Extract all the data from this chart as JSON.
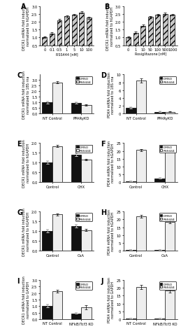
{
  "panel_A": {
    "title": "A",
    "xlabel": "RSS444 [nM]",
    "ylabel": "DECR1 mRNA fold induction\nnormalized to hGAPDH",
    "categories": [
      "0",
      "0.1",
      "0.5",
      "1",
      "5",
      "10",
      "100"
    ],
    "values": [
      1.0,
      1.25,
      2.1,
      2.35,
      2.45,
      2.6,
      2.25
    ],
    "errors": [
      0.05,
      0.07,
      0.08,
      0.07,
      0.06,
      0.08,
      0.06
    ],
    "ylim": [
      0.5,
      3.0
    ],
    "yticks": [
      0.5,
      1.0,
      1.5,
      2.0,
      2.5,
      3.0
    ],
    "color": "#c8c8c8",
    "hatch": "////"
  },
  "panel_B": {
    "title": "B",
    "xlabel": "Rosiglitazone [nM]",
    "ylabel": "DECR1 mRNA fold induction\nnormalized to hGAPDH",
    "categories": [
      "0",
      "1",
      "10",
      "50",
      "100",
      "500",
      "1000"
    ],
    "values": [
      1.0,
      1.3,
      1.75,
      2.3,
      2.45,
      2.5,
      2.45
    ],
    "errors": [
      0.05,
      0.06,
      0.07,
      0.07,
      0.06,
      0.07,
      0.06
    ],
    "ylim": [
      0.5,
      3.0
    ],
    "yticks": [
      0.5,
      1.0,
      1.5,
      2.0,
      2.5,
      3.0
    ],
    "color": "#c8c8c8",
    "hatch": "////"
  },
  "panel_C": {
    "title": "C",
    "ylabel": "DECR1 mRNA fold induction\nnormalized to 18S rna",
    "groups": [
      "NT Control",
      "PPARyKD"
    ],
    "dmso_values": [
      1.0,
      0.95
    ],
    "rss_values": [
      2.8,
      0.75
    ],
    "dmso_errors": [
      0.08,
      0.06
    ],
    "rss_errors": [
      0.1,
      0.06
    ],
    "ylim": [
      0,
      3.5
    ],
    "yticks": [
      0.0,
      0.5,
      1.0,
      1.5,
      2.0,
      2.5,
      3.0
    ]
  },
  "panel_D": {
    "title": "D",
    "ylabel": "PDK4 mRNA fold induction\nnormalized to 18S rna",
    "groups": [
      "NT Control",
      "PPARyKD"
    ],
    "dmso_values": [
      1.5,
      0.5
    ],
    "rss_values": [
      8.5,
      0.5
    ],
    "dmso_errors": [
      0.15,
      0.06
    ],
    "rss_errors": [
      0.5,
      0.05
    ],
    "ylim": [
      0,
      10
    ],
    "yticks": [
      0,
      2,
      4,
      6,
      8,
      10
    ]
  },
  "panel_E": {
    "title": "E",
    "ylabel": "DECR1 mRNA fold induction\nnormalized to hGAPDH",
    "groups": [
      "Control",
      "CHX"
    ],
    "dmso_values": [
      1.0,
      1.4
    ],
    "rss_values": [
      1.85,
      1.15
    ],
    "dmso_errors": [
      0.07,
      0.06
    ],
    "rss_errors": [
      0.05,
      0.05
    ],
    "ylim": [
      0,
      2.0
    ],
    "yticks": [
      0.0,
      0.5,
      1.0,
      1.5,
      2.0
    ]
  },
  "panel_F": {
    "title": "F",
    "ylabel": "PDK4 mRNA fold induction\nnormalized to hGAPDH",
    "groups": [
      "Control",
      "CHX"
    ],
    "dmso_values": [
      0.5,
      2.5
    ],
    "rss_values": [
      20.5,
      20.0
    ],
    "dmso_errors": [
      0.1,
      0.2
    ],
    "rss_errors": [
      0.8,
      0.8
    ],
    "ylim": [
      0,
      25
    ],
    "yticks": [
      0,
      5,
      10,
      15,
      20,
      25
    ]
  },
  "panel_G": {
    "title": "G",
    "ylabel": "DECR1 mRNA fold induction\nnormalized to hGAPDH",
    "groups": [
      "Control",
      "CsA"
    ],
    "dmso_values": [
      1.0,
      1.25
    ],
    "rss_values": [
      1.85,
      1.05
    ],
    "dmso_errors": [
      0.07,
      0.06
    ],
    "rss_errors": [
      0.05,
      0.05
    ],
    "ylim": [
      0,
      2.0
    ],
    "yticks": [
      0.0,
      0.5,
      1.0,
      1.5,
      2.0
    ]
  },
  "panel_H": {
    "title": "H",
    "ylabel": "PDK4 mRNA fold induction\nnormalized to hGAPDH",
    "groups": [
      "Control",
      "CsA"
    ],
    "dmso_values": [
      0.5,
      0.5
    ],
    "rss_values": [
      22.0,
      18.5
    ],
    "dmso_errors": [
      0.1,
      0.1
    ],
    "rss_errors": [
      1.0,
      1.0
    ],
    "ylim": [
      0,
      25
    ],
    "yticks": [
      0,
      5,
      10,
      15,
      20,
      25
    ]
  },
  "panel_I": {
    "title": "I",
    "ylabel": "DECR1 mRNA fold induction\nnormalized to GAPDH",
    "groups": [
      "NT Control",
      "NFkB/Tcf3 KO"
    ],
    "dmso_values": [
      1.0,
      0.45
    ],
    "rss_values": [
      2.15,
      0.9
    ],
    "dmso_errors": [
      0.1,
      0.05
    ],
    "rss_errors": [
      0.1,
      0.15
    ],
    "ylim": [
      0,
      3.0
    ],
    "yticks": [
      0.0,
      0.5,
      1.0,
      1.5,
      2.0,
      2.5,
      3.0
    ]
  },
  "panel_J": {
    "title": "J",
    "ylabel": "PDK4 mRNA fold induction\nnormalized to GAPDH",
    "groups": [
      "NT Control",
      "NFkB/Tcf3 KO"
    ],
    "dmso_values": [
      0.5,
      0.5
    ],
    "rss_values": [
      20.5,
      18.5
    ],
    "dmso_errors": [
      0.1,
      0.1
    ],
    "rss_errors": [
      1.5,
      1.5
    ],
    "ylim": [
      0,
      25
    ],
    "yticks": [
      0,
      5,
      10,
      15,
      20,
      25
    ]
  },
  "dmso_color": "#111111",
  "rss_color": "#eeeeee",
  "legend_dmso": "DMSO",
  "legend_rss": "RSS444"
}
